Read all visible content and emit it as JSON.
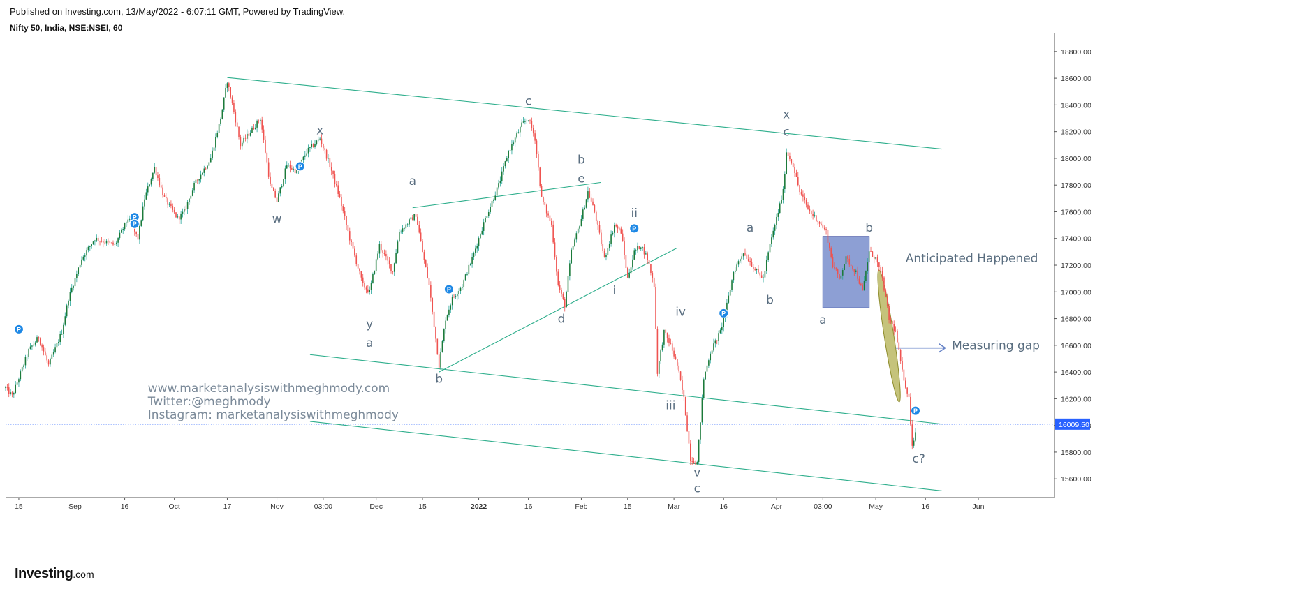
{
  "header": {
    "published": "Published on Investing.com, 13/May/2022 - 6:07:11 GMT, Powered by TradingView.",
    "symbol": "Nifty 50, India, NSE:NSEI, 60"
  },
  "logo": {
    "main": "Investing",
    "suffix": ".com"
  },
  "colors": {
    "up": "#26a69a",
    "down": "#ef5350",
    "trendline": "#2eae8c",
    "label": "#5a6e80",
    "price_line": "#2962ff",
    "box_fill": "#7087c9",
    "ellipse_fill": "#b7b45a",
    "marker": "#1e88e5"
  },
  "chart_data": {
    "type": "candlestick",
    "title": "Nifty 50, India, NSE:NSEI, 60",
    "x_axis": {
      "range": [
        "2021-08-11",
        "2022-06-24"
      ],
      "ticks": [
        {
          "date": "2021-08-15",
          "label": "15"
        },
        {
          "date": "2021-09-01",
          "label": "Sep"
        },
        {
          "date": "2021-09-16",
          "label": "16"
        },
        {
          "date": "2021-10-01",
          "label": "Oct"
        },
        {
          "date": "2021-10-17",
          "label": "17"
        },
        {
          "date": "2021-11-01",
          "label": "Nov"
        },
        {
          "date": "2021-11-15",
          "label": "03:00"
        },
        {
          "date": "2021-12-01",
          "label": "Dec"
        },
        {
          "date": "2021-12-15",
          "label": "15"
        },
        {
          "date": "2022-01-01",
          "label": "2022",
          "bold": true
        },
        {
          "date": "2022-01-16",
          "label": "16"
        },
        {
          "date": "2022-02-01",
          "label": "Feb"
        },
        {
          "date": "2022-02-15",
          "label": "15"
        },
        {
          "date": "2022-03-01",
          "label": "Mar"
        },
        {
          "date": "2022-03-16",
          "label": "16"
        },
        {
          "date": "2022-04-01",
          "label": "Apr"
        },
        {
          "date": "2022-04-15",
          "label": "03:00"
        },
        {
          "date": "2022-05-01",
          "label": "May"
        },
        {
          "date": "2022-05-16",
          "label": "16"
        },
        {
          "date": "2022-06-01",
          "label": "Jun"
        }
      ]
    },
    "y_axis": {
      "range": [
        15460,
        18935
      ],
      "ticks": [
        "15600.00",
        "15800.00",
        "16000.00",
        "16200.00",
        "16400.00",
        "16600.00",
        "16800.00",
        "17000.00",
        "17200.00",
        "17400.00",
        "17600.00",
        "17800.00",
        "18000.00",
        "18200.00",
        "18400.00",
        "18600.00",
        "18800.00"
      ],
      "last_price": 16009.5,
      "last_price_label": "16009.50"
    },
    "price_path": [
      [
        "2021-08-11",
        16280
      ],
      [
        "2021-08-13",
        16220
      ],
      [
        "2021-08-18",
        16560
      ],
      [
        "2021-08-21",
        16660
      ],
      [
        "2021-08-24",
        16450
      ],
      [
        "2021-08-28",
        16700
      ],
      [
        "2021-08-30",
        16950
      ],
      [
        "2021-09-03",
        17250
      ],
      [
        "2021-09-07",
        17400
      ],
      [
        "2021-09-13",
        17350
      ],
      [
        "2021-09-17",
        17550
      ],
      [
        "2021-09-20",
        17400
      ],
      [
        "2021-09-22",
        17700
      ],
      [
        "2021-09-25",
        17930
      ],
      [
        "2021-09-28",
        17700
      ],
      [
        "2021-10-02",
        17550
      ],
      [
        "2021-10-04",
        17600
      ],
      [
        "2021-10-07",
        17800
      ],
      [
        "2021-10-12",
        18000
      ],
      [
        "2021-10-15",
        18300
      ],
      [
        "2021-10-17",
        18580
      ],
      [
        "2021-10-19",
        18350
      ],
      [
        "2021-10-21",
        18100
      ],
      [
        "2021-10-24",
        18200
      ],
      [
        "2021-10-27",
        18300
      ],
      [
        "2021-10-30",
        17800
      ],
      [
        "2021-11-01",
        17680
      ],
      [
        "2021-11-04",
        17950
      ],
      [
        "2021-11-07",
        17900
      ],
      [
        "2021-11-10",
        18050
      ],
      [
        "2021-11-14",
        18150
      ],
      [
        "2021-11-17",
        17950
      ],
      [
        "2021-11-20",
        17700
      ],
      [
        "2021-11-23",
        17400
      ],
      [
        "2021-11-27",
        17050
      ],
      [
        "2021-11-29",
        17000
      ],
      [
        "2021-12-02",
        17350
      ],
      [
        "2021-12-06",
        17150
      ],
      [
        "2021-12-08",
        17450
      ],
      [
        "2021-12-13",
        17580
      ],
      [
        "2021-12-15",
        17300
      ],
      [
        "2021-12-17",
        17050
      ],
      [
        "2021-12-20",
        16450
      ],
      [
        "2021-12-22",
        16800
      ],
      [
        "2021-12-24",
        16950
      ],
      [
        "2021-12-27",
        17050
      ],
      [
        "2021-12-30",
        17250
      ],
      [
        "2022-01-03",
        17550
      ],
      [
        "2022-01-07",
        17800
      ],
      [
        "2022-01-10",
        18050
      ],
      [
        "2022-01-14",
        18250
      ],
      [
        "2022-01-16",
        18300
      ],
      [
        "2022-01-18",
        18150
      ],
      [
        "2022-01-20",
        17700
      ],
      [
        "2022-01-23",
        17500
      ],
      [
        "2022-01-25",
        17050
      ],
      [
        "2022-01-27",
        16900
      ],
      [
        "2022-01-29",
        17300
      ],
      [
        "2022-02-01",
        17550
      ],
      [
        "2022-02-03",
        17750
      ],
      [
        "2022-02-05",
        17600
      ],
      [
        "2022-02-08",
        17250
      ],
      [
        "2022-02-11",
        17500
      ],
      [
        "2022-02-13",
        17450
      ],
      [
        "2022-02-15",
        17100
      ],
      [
        "2022-02-17",
        17300
      ],
      [
        "2022-02-19",
        17350
      ],
      [
        "2022-02-21",
        17250
      ],
      [
        "2022-02-23",
        17050
      ],
      [
        "2022-02-24",
        16400
      ],
      [
        "2022-02-26",
        16700
      ],
      [
        "2022-02-28",
        16600
      ],
      [
        "2022-03-02",
        16450
      ],
      [
        "2022-03-04",
        16200
      ],
      [
        "2022-03-06",
        15750
      ],
      [
        "2022-03-08",
        15720
      ],
      [
        "2022-03-10",
        16350
      ],
      [
        "2022-03-12",
        16550
      ],
      [
        "2022-03-15",
        16700
      ],
      [
        "2022-03-17",
        16900
      ],
      [
        "2022-03-19",
        17150
      ],
      [
        "2022-03-22",
        17300
      ],
      [
        "2022-03-26",
        17150
      ],
      [
        "2022-03-28",
        17100
      ],
      [
        "2022-03-30",
        17350
      ],
      [
        "2022-04-01",
        17550
      ],
      [
        "2022-04-03",
        17750
      ],
      [
        "2022-04-04",
        18050
      ],
      [
        "2022-04-06",
        17950
      ],
      [
        "2022-04-08",
        17750
      ],
      [
        "2022-04-11",
        17600
      ],
      [
        "2022-04-13",
        17550
      ],
      [
        "2022-04-16",
        17450
      ],
      [
        "2022-04-18",
        17200
      ],
      [
        "2022-04-20",
        17100
      ],
      [
        "2022-04-22",
        17250
      ],
      [
        "2022-04-25",
        17150
      ],
      [
        "2022-04-27",
        17000
      ],
      [
        "2022-04-29",
        17300
      ],
      [
        "2022-05-01",
        17250
      ],
      [
        "2022-05-03",
        17100
      ],
      [
        "2022-05-05",
        16800
      ],
      [
        "2022-05-07",
        16700
      ],
      [
        "2022-05-09",
        16400
      ],
      [
        "2022-05-11",
        16200
      ],
      [
        "2022-05-12",
        15850
      ],
      [
        "2022-05-13",
        15950
      ]
    ],
    "trendlines": [
      {
        "from": [
          "2021-10-17",
          18605
        ],
        "to": [
          "2022-05-21",
          18070
        ]
      },
      {
        "from": [
          "2021-11-11",
          16530
        ],
        "to": [
          "2022-05-21",
          16010
        ]
      },
      {
        "from": [
          "2021-11-11",
          16030
        ],
        "to": [
          "2022-05-21",
          15510
        ]
      },
      {
        "from": [
          "2021-12-12",
          17630
        ],
        "to": [
          "2022-02-07",
          17820
        ]
      },
      {
        "from": [
          "2021-12-20",
          16400
        ],
        "to": [
          "2022-03-02",
          17330
        ]
      }
    ],
    "annotations": [
      {
        "text": "x",
        "at": [
          "2021-11-14",
          18180
        ]
      },
      {
        "text": "w",
        "at": [
          "2021-11-01",
          17520
        ]
      },
      {
        "text": "y",
        "at": [
          "2021-11-29",
          16730
        ]
      },
      {
        "text": "a",
        "at": [
          "2021-11-29",
          16590
        ]
      },
      {
        "text": "a",
        "at": [
          "2021-12-12",
          17800
        ]
      },
      {
        "text": "b",
        "at": [
          "2021-12-20",
          16320
        ]
      },
      {
        "text": "c",
        "at": [
          "2022-01-16",
          18400
        ]
      },
      {
        "text": "b",
        "at": [
          "2022-02-01",
          17960
        ]
      },
      {
        "text": "e",
        "at": [
          "2022-02-01",
          17820
        ]
      },
      {
        "text": "d",
        "at": [
          "2022-01-26",
          16770
        ]
      },
      {
        "text": "ii",
        "at": [
          "2022-02-17",
          17560
        ]
      },
      {
        "text": "i",
        "at": [
          "2022-02-11",
          16980
        ]
      },
      {
        "text": "iv",
        "at": [
          "2022-03-03",
          16820
        ]
      },
      {
        "text": "iii",
        "at": [
          "2022-02-28",
          16120
        ]
      },
      {
        "text": "v",
        "at": [
          "2022-03-08",
          15620
        ]
      },
      {
        "text": "c",
        "at": [
          "2022-03-08",
          15500
        ]
      },
      {
        "text": "a",
        "at": [
          "2022-03-24",
          17450
        ]
      },
      {
        "text": "b",
        "at": [
          "2022-03-30",
          16910
        ]
      },
      {
        "text": "x",
        "at": [
          "2022-04-04",
          18300
        ]
      },
      {
        "text": "c",
        "at": [
          "2022-04-04",
          18170
        ]
      },
      {
        "text": "a",
        "at": [
          "2022-04-15",
          16760
        ]
      },
      {
        "text": "b",
        "at": [
          "2022-04-29",
          17450
        ]
      },
      {
        "text": "c?",
        "at": [
          "2022-05-14",
          15720
        ]
      },
      {
        "text": "Anticipated Happened",
        "at": [
          "2022-05-10",
          17220
        ],
        "anchor": "start",
        "size": 17
      },
      {
        "text": "Measuring gap",
        "at": [
          "2022-05-24",
          16570
        ],
        "anchor": "start",
        "size": 17
      }
    ],
    "watermark": [
      "www.marketanalysiswithmeghmody.com",
      "Twitter:@meghmody",
      "Instagram: marketanalysiswithmeghmody"
    ],
    "watermark_anchor": [
      "2021-09-23",
      16250
    ],
    "shapes": [
      {
        "kind": "rectangle",
        "from": [
          "2022-04-15",
          17415
        ],
        "to": [
          "2022-04-29",
          16880
        ]
      },
      {
        "kind": "ellipse",
        "around": [
          "2022-05-05",
          16670
        ],
        "span_days": 2.9,
        "span_price": 1000,
        "tilt": -8.8
      },
      {
        "kind": "arrow",
        "from": [
          "2022-05-07",
          16580
        ],
        "to": [
          "2022-05-22",
          16580
        ]
      }
    ],
    "markers": [
      [
        "2021-08-15",
        16720
      ],
      [
        "2021-09-19",
        17560
      ],
      [
        "2021-09-19",
        17510
      ],
      [
        "2021-11-08",
        17940
      ],
      [
        "2021-12-23",
        17020
      ],
      [
        "2022-02-17",
        17475
      ],
      [
        "2022-03-16",
        16840
      ],
      [
        "2022-05-13",
        16110
      ]
    ]
  }
}
